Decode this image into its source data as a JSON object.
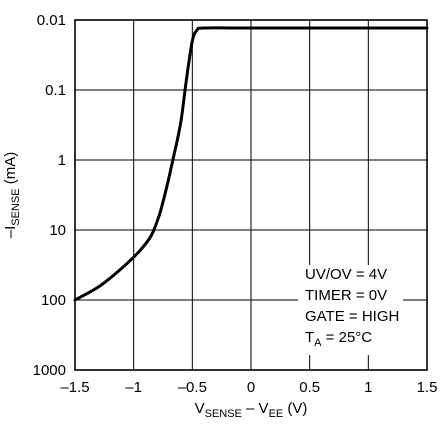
{
  "chart_data": {
    "type": "line",
    "x_axis": {
      "label_main": "V",
      "label_sub1": "SENSE",
      "label_mid": " – V",
      "label_sub2": "EE",
      "label_end": " (V)",
      "ticks": [
        -1.5,
        -1,
        -0.5,
        0,
        0.5,
        1,
        1.5
      ],
      "tick_labels": [
        "–1.5",
        "–1",
        "–0.5",
        "0",
        "0.5",
        "1",
        "1.5"
      ],
      "range": [
        -1.5,
        1.5
      ]
    },
    "y_axis": {
      "label_main": "–I",
      "label_sub": "SENSE",
      "label_end": " (mA)",
      "scale": "log",
      "inverted": true,
      "ticks": [
        0.01,
        0.1,
        1,
        10,
        100,
        1000
      ],
      "tick_labels": [
        "0.01",
        "0.1",
        "1",
        "10",
        "100",
        "1000"
      ],
      "range": [
        0.01,
        1000
      ]
    },
    "grid": true,
    "series": [
      {
        "points": [
          {
            "x": -1.5,
            "y": 100
          },
          {
            "x": -1.3,
            "y": 65
          },
          {
            "x": -1.1,
            "y": 35
          },
          {
            "x": -0.95,
            "y": 20
          },
          {
            "x": -0.85,
            "y": 12
          },
          {
            "x": -0.78,
            "y": 6
          },
          {
            "x": -0.72,
            "y": 2.5
          },
          {
            "x": -0.66,
            "y": 0.9
          },
          {
            "x": -0.6,
            "y": 0.3
          },
          {
            "x": -0.55,
            "y": 0.07
          },
          {
            "x": -0.5,
            "y": 0.02
          },
          {
            "x": -0.46,
            "y": 0.014
          },
          {
            "x": -0.4,
            "y": 0.013
          },
          {
            "x": 0,
            "y": 0.013
          },
          {
            "x": 1.5,
            "y": 0.013
          }
        ]
      }
    ],
    "annotations": {
      "line1": "UV/OV = 4V",
      "line2": "TIMER = 0V",
      "line3": "GATE = HIGH",
      "line4_main": "T",
      "line4_sub": "A",
      "line4_end": " = 25°C"
    }
  }
}
